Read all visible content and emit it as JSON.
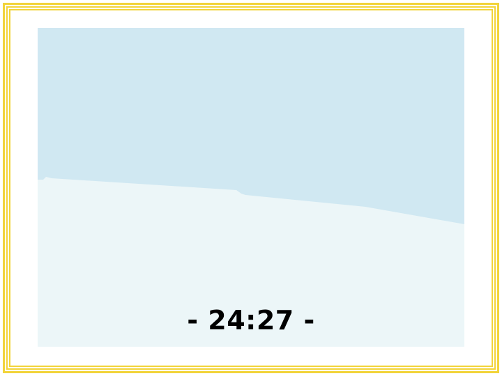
{
  "game": {
    "timer_text": "- 24:27 -"
  },
  "colors": {
    "frame": "#f2d43a",
    "sky": "#d0e8f2",
    "snow": "#ecf6f8",
    "text": "#000000"
  }
}
